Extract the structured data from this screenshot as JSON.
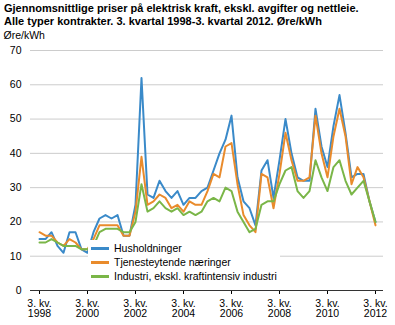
{
  "chart_data": {
    "type": "line",
    "title": "Gjennomsnittlige priser på elektrisk kraft, ekskl. avgifter og nettleie.\nAlle typer kontrakter. 3. kvartal 1998-3. kvartal 2012. Øre/kWh",
    "y_label": "Øre/kWh",
    "categories": [
      "3. kv.\n1998",
      null,
      null,
      null,
      null,
      null,
      null,
      null,
      "3. kv.\n2000",
      null,
      null,
      null,
      null,
      null,
      null,
      null,
      "3. kv.\n2002",
      null,
      null,
      null,
      null,
      null,
      null,
      null,
      "3. kv.\n2004",
      null,
      null,
      null,
      null,
      null,
      null,
      null,
      "3. kv.\n2006",
      null,
      null,
      null,
      null,
      null,
      null,
      null,
      "3. kv.\n2008",
      null,
      null,
      null,
      null,
      null,
      null,
      null,
      "3. kv.\n2010",
      null,
      null,
      null,
      null,
      null,
      null,
      null,
      "3. kv.\n2012"
    ],
    "series": [
      {
        "name": "Husholdninger",
        "color": "#3a8ac9",
        "values": [
          15,
          15,
          17,
          13,
          11,
          17,
          17,
          12,
          11,
          17,
          21,
          22,
          21,
          22,
          16,
          16,
          25,
          62,
          28,
          27,
          32,
          29,
          27,
          29,
          25,
          27,
          27,
          29,
          30,
          35,
          40,
          44,
          51,
          33,
          26,
          24,
          19,
          35,
          38,
          27,
          38,
          50,
          40,
          33,
          32,
          32,
          53,
          42,
          36,
          48,
          57,
          46,
          33,
          34,
          34,
          26,
          20
        ]
      },
      {
        "name": "Tjenesteytende næringer",
        "color": "#e98b2c",
        "values": [
          17,
          16,
          16,
          14,
          13,
          15,
          14,
          12,
          12,
          15,
          19,
          19,
          19,
          19,
          16,
          16,
          23,
          39,
          25,
          26,
          28,
          27,
          24,
          25,
          23,
          26,
          25,
          25,
          29,
          34,
          33,
          42,
          43,
          31,
          22,
          19,
          17,
          34,
          33,
          24,
          34,
          46,
          38,
          32,
          32,
          33,
          51,
          40,
          33,
          45,
          53,
          45,
          31,
          36,
          33,
          26,
          19
        ]
      },
      {
        "name": "Industri, ekskl. kraftintensiv industri",
        "color": "#7ab648",
        "values": [
          14,
          14,
          15,
          14,
          13,
          13,
          13,
          12,
          12,
          13,
          17,
          18,
          18,
          18,
          17,
          17,
          20,
          31,
          23,
          24,
          26,
          24,
          23,
          24,
          22,
          23,
          22,
          23,
          26,
          27,
          26,
          30,
          29,
          23,
          20,
          17,
          18,
          25,
          26,
          26,
          31,
          35,
          36,
          29,
          27,
          29,
          38,
          33,
          29,
          36,
          38,
          32,
          28,
          30,
          32,
          26,
          20
        ]
      }
    ],
    "ylim": [
      0,
      70
    ],
    "yticks": [
      0,
      10,
      20,
      30,
      40,
      50,
      60,
      70
    ],
    "grid": true,
    "legend": "bottom"
  }
}
